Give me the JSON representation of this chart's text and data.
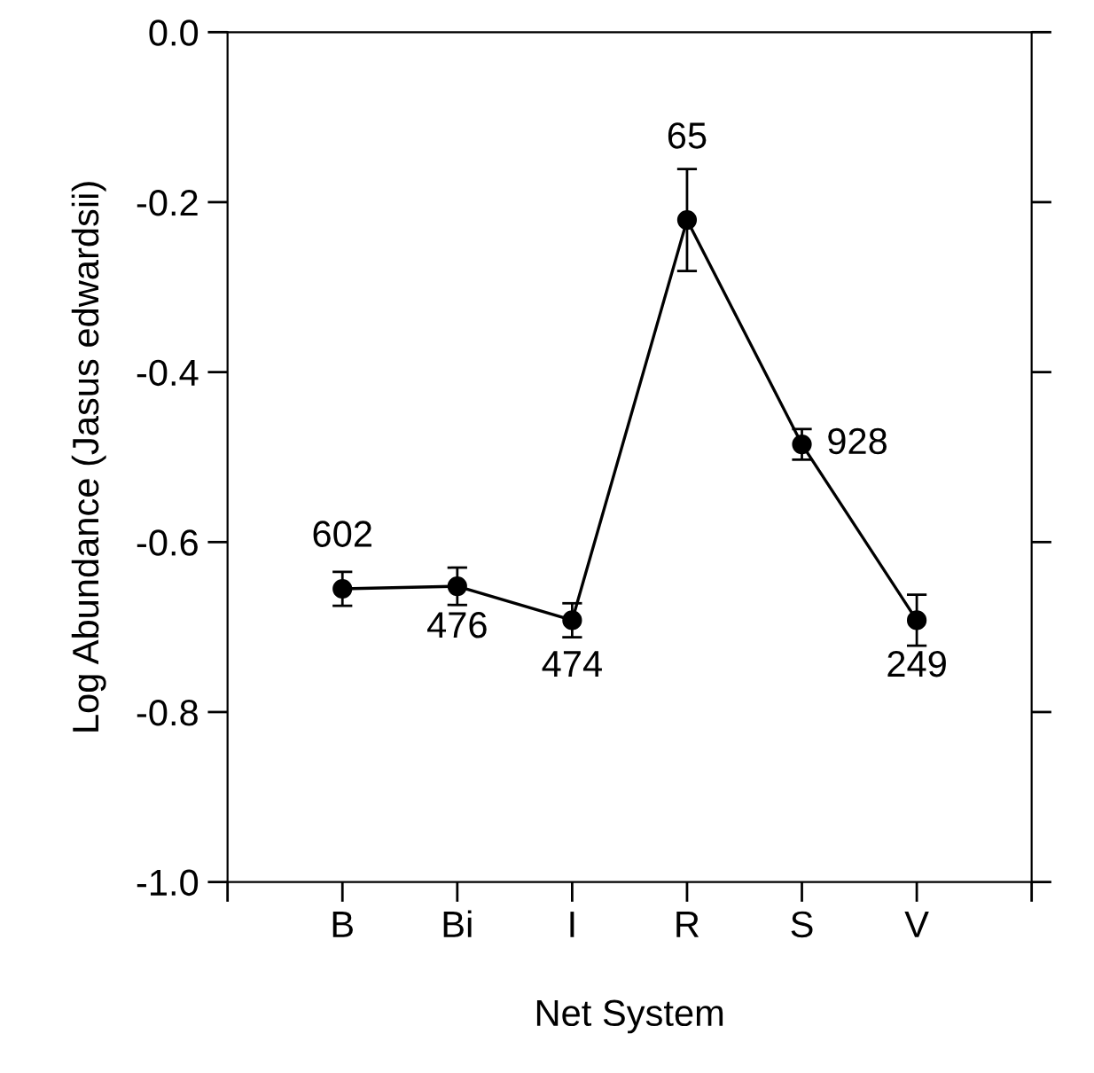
{
  "chart_data": {
    "type": "line",
    "xlabel": "Net System",
    "ylabel": "Log Abundance (Jasus edwardsii)",
    "categories": [
      "B",
      "Bi",
      "I",
      "R",
      "S",
      "V"
    ],
    "series": [
      {
        "color": "#000000",
        "values": [
          -0.655,
          -0.652,
          -0.692,
          -0.221,
          -0.485,
          -0.692
        ],
        "errors": [
          0.02,
          0.022,
          0.02,
          0.06,
          0.018,
          0.03
        ]
      }
    ],
    "ylim": [
      -1.0,
      0.0
    ],
    "yticks": [
      {
        "value": -1.0,
        "label": "-1.0"
      },
      -0.8,
      -0.6,
      -0.4,
      -0.2,
      {
        "value": 0.0,
        "label": "0.0"
      }
    ],
    "annotations": [
      {
        "text": "602",
        "x": "B",
        "y": -0.655
      },
      {
        "text": "476",
        "x": "Bi",
        "y": -0.652
      },
      {
        "text": "474",
        "x": "I",
        "y": -0.692
      },
      {
        "text": "65",
        "x": "R",
        "y": -0.221
      },
      {
        "text": "928",
        "x": "S",
        "y": -0.485
      },
      {
        "text": "249",
        "x": "V",
        "y": -0.692
      }
    ],
    "marker": "circle",
    "line_style": "solid",
    "grid": false,
    "legend": false
  }
}
